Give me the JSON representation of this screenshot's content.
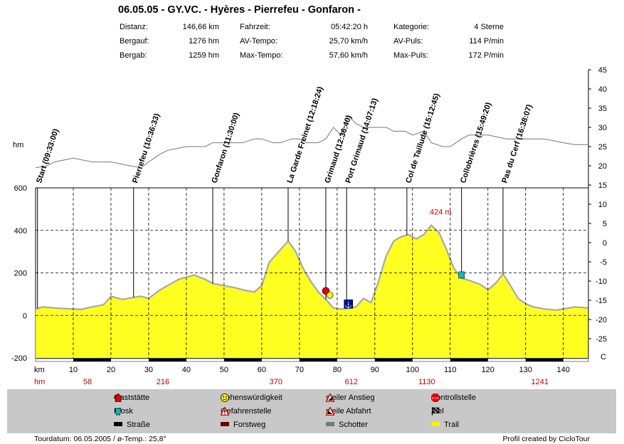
{
  "title": "06.05.05 - GY.VC. - Hyères - Pierrefeu - Gonfaron -",
  "stats": [
    {
      "label": "Distanz:",
      "value": "146,66 km"
    },
    {
      "label": "Bergauf:",
      "value": "1276 hm"
    },
    {
      "label": "Bergab:",
      "value": "1259 hm"
    },
    {
      "label": "Fahrzeit:",
      "value": "05:42:20 h"
    },
    {
      "label": "AV-Tempo:",
      "value": "25,70 km/h"
    },
    {
      "label": "Max-Tempo:",
      "value": "57,60 km/h"
    },
    {
      "label": "Kategorie:",
      "value": "4 Sterne"
    },
    {
      "label": "AV-Puls:",
      "value": "114 P/min"
    },
    {
      "label": "Max-Puls:",
      "value": "172 P/min"
    }
  ],
  "chart_data": {
    "type": "area",
    "x_unit": "km",
    "y_unit_left": "hm",
    "y_unit_right": "C",
    "ylim_left": [
      -200,
      600
    ],
    "yticks_left": [
      600,
      400,
      200,
      0,
      -200
    ],
    "ylim_right": [
      -30,
      45
    ],
    "yticks_right": [
      45,
      40,
      35,
      30,
      25,
      20,
      15,
      10,
      5,
      0,
      -5,
      -10,
      -15,
      -20,
      -25
    ],
    "xlim": [
      0,
      146.66
    ],
    "xticks": [
      10,
      20,
      30,
      40,
      50,
      60,
      70,
      80,
      90,
      100,
      110,
      120,
      130,
      140
    ],
    "hm_row": [
      {
        "km": 10,
        "value": "58"
      },
      {
        "km": 30,
        "value": "216"
      },
      {
        "km": 60,
        "value": "370"
      },
      {
        "km": 80,
        "value": "612"
      },
      {
        "km": 100,
        "value": "1130"
      },
      {
        "km": 130,
        "value": "1241"
      }
    ],
    "elevation": {
      "km": [
        0,
        2,
        5,
        8,
        10,
        12,
        15,
        18,
        20,
        23,
        26,
        28,
        30,
        33,
        36,
        38,
        40,
        42,
        45,
        47,
        50,
        53,
        55,
        58,
        60,
        62,
        65,
        67,
        69,
        71,
        73,
        75,
        77,
        79,
        81,
        83,
        85,
        87,
        89,
        91,
        93,
        95,
        97,
        99,
        101,
        103,
        105,
        107,
        109,
        111,
        113,
        115,
        118,
        120,
        122,
        124,
        126,
        128,
        130,
        132,
        135,
        138,
        140,
        143,
        146.66
      ],
      "m": [
        30,
        40,
        35,
        32,
        30,
        28,
        40,
        50,
        90,
        75,
        85,
        90,
        80,
        120,
        150,
        170,
        180,
        190,
        170,
        150,
        140,
        130,
        120,
        110,
        140,
        250,
        310,
        350,
        300,
        220,
        160,
        110,
        75,
        35,
        30,
        32,
        40,
        80,
        60,
        160,
        280,
        350,
        370,
        380,
        360,
        380,
        424,
        390,
        310,
        220,
        175,
        165,
        145,
        120,
        150,
        195,
        140,
        80,
        55,
        40,
        30,
        25,
        30,
        40,
        35
      ]
    },
    "temperature": {
      "km": [
        0,
        3,
        5,
        10,
        15,
        20,
        25,
        28,
        30,
        33,
        35,
        40,
        45,
        47,
        50,
        55,
        58,
        60,
        63,
        65,
        68,
        70,
        72,
        75,
        77,
        79,
        81,
        83,
        85,
        87,
        90,
        93,
        95,
        98,
        100,
        103,
        105,
        108,
        110,
        113,
        115,
        118,
        120,
        125,
        130,
        135,
        140,
        143,
        146.66
      ],
      "c": [
        19.5,
        20,
        21,
        22,
        21,
        21,
        20,
        19.5,
        21,
        23,
        24,
        25,
        25,
        26,
        26,
        26,
        27,
        27,
        26,
        26,
        27,
        27,
        26,
        26,
        27,
        30,
        28,
        33,
        31,
        30,
        30,
        30,
        29,
        29,
        28,
        29,
        26,
        25,
        25,
        27,
        28,
        28,
        28,
        27,
        27,
        27,
        26,
        25.5,
        25.5
      ]
    },
    "waypoints": [
      {
        "km": 0.5,
        "label": "Start (09:33:00)"
      },
      {
        "km": 26,
        "label": "Pierrefeu (10:36:33)"
      },
      {
        "km": 47,
        "label": "Gonfaron (11:30:00)"
      },
      {
        "km": 67,
        "label": "La Garde Freinet (12:18:24)"
      },
      {
        "km": 77,
        "label": "Grimaud (12:36:40)"
      },
      {
        "km": 82.5,
        "label": "Port Grimaud (14:07:13)"
      },
      {
        "km": 98.5,
        "label": "Col de Taillude  (15:12:45)"
      },
      {
        "km": 113,
        "label": "Collobrières (15:49:20)"
      },
      {
        "km": 124,
        "label": "Pas du Cerf (16:38:07)"
      }
    ],
    "max_label": {
      "km": 105,
      "text": "424 m"
    },
    "pois": [
      {
        "km": 77,
        "m": 115,
        "type": "stop",
        "color": "#e00000"
      },
      {
        "km": 77.5,
        "m": 95,
        "type": "smiley",
        "color": "#ffee00"
      },
      {
        "km": 83,
        "m": 40,
        "type": "anchor",
        "color": "#0000aa"
      },
      {
        "km": 113,
        "m": 185,
        "type": "kiosk",
        "color": "#00c0c0"
      }
    ],
    "surface_segments": [
      {
        "from": 10,
        "to": 20,
        "type": "Straße"
      },
      {
        "from": 30,
        "to": 40,
        "type": "Straße"
      },
      {
        "from": 50,
        "to": 60,
        "type": "Straße"
      },
      {
        "from": 70,
        "to": 80,
        "type": "Straße"
      },
      {
        "from": 90,
        "to": 100,
        "type": "Straße"
      },
      {
        "from": 110,
        "to": 120,
        "type": "Straße"
      },
      {
        "from": 130,
        "to": 140,
        "type": "Straße"
      }
    ]
  },
  "legend": [
    {
      "label": "Gaststätte",
      "icon": "house-icon",
      "color": "#e00000"
    },
    {
      "label": "Sehenswürdigkeit",
      "icon": "smiley-icon",
      "color": "#ffee00"
    },
    {
      "label": "steiler Anstieg",
      "icon": "warning-triangle-icon",
      "color": "#e00000"
    },
    {
      "label": "Kontrollstelle",
      "icon": "stop-sign-icon",
      "color": "#e00000"
    },
    {
      "label": "Kiosk",
      "icon": "cup-icon",
      "color": "#00c0c0"
    },
    {
      "label": "Gefahrenstelle",
      "icon": "danger-icon",
      "color": "#e00000"
    },
    {
      "label": "steile Abfahrt",
      "icon": "warning-triangle-icon",
      "color": "#e00000"
    },
    {
      "label": "Ziel",
      "icon": "checkered-flag-icon",
      "color": "#000000"
    },
    {
      "label": "Straße",
      "icon": "road-swatch",
      "color": "#000000"
    },
    {
      "label": "Forstweg",
      "icon": "forest-road-swatch",
      "color": "#6b0000"
    },
    {
      "label": "Schotter",
      "icon": "gravel-swatch",
      "color": "#777777"
    },
    {
      "label": "Trail",
      "icon": "trail-swatch",
      "color": "#ffee00"
    }
  ],
  "footer": {
    "left": "Tourdatum: 06.05.2005  /  ø-Temp.: 25,8°",
    "right": "Profil created by CicloTour"
  }
}
